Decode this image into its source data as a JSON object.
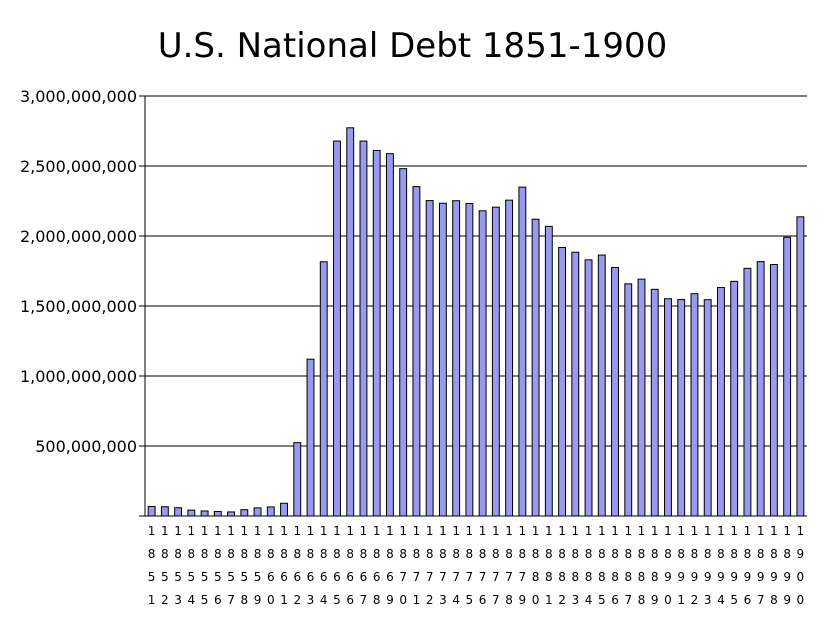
{
  "chart_data": {
    "type": "bar",
    "title": "U.S. National Debt 1851-1900",
    "xlabel": "",
    "ylabel": "",
    "ylim": [
      0,
      3000000000
    ],
    "yticks": [
      0,
      500000000,
      1000000000,
      1500000000,
      2000000000,
      2500000000,
      3000000000
    ],
    "ytick_labels": [
      "",
      "500,000,000",
      "1,000,000,000",
      "1,500,000,000",
      "2,000,000,000",
      "2,500,000,000",
      "3,000,000,000"
    ],
    "grid": true,
    "legend": "none",
    "bar_color": "#9999ee",
    "categories": [
      "1851",
      "1852",
      "1853",
      "1854",
      "1855",
      "1856",
      "1857",
      "1858",
      "1859",
      "1860",
      "1861",
      "1862",
      "1863",
      "1864",
      "1865",
      "1866",
      "1867",
      "1868",
      "1869",
      "1870",
      "1871",
      "1872",
      "1873",
      "1874",
      "1875",
      "1876",
      "1877",
      "1878",
      "1879",
      "1880",
      "1881",
      "1882",
      "1883",
      "1884",
      "1885",
      "1886",
      "1887",
      "1888",
      "1889",
      "1890",
      "1891",
      "1892",
      "1893",
      "1894",
      "1895",
      "1896",
      "1897",
      "1898",
      "1899",
      "1900"
    ],
    "values": [
      68000000,
      66000000,
      59000000,
      42000000,
      36000000,
      32000000,
      29000000,
      45000000,
      58000000,
      65000000,
      91000000,
      524000000,
      1120000000,
      1816000000,
      2678000000,
      2773000000,
      2678000000,
      2611000000,
      2588000000,
      2481000000,
      2353000000,
      2253000000,
      2234000000,
      2252000000,
      2232000000,
      2180000000,
      2206000000,
      2256000000,
      2349000000,
      2120000000,
      2069000000,
      1918000000,
      1884000000,
      1830000000,
      1864000000,
      1775000000,
      1658000000,
      1692000000,
      1619000000,
      1552000000,
      1546000000,
      1588000000,
      1545000000,
      1632000000,
      1676000000,
      1769000000,
      1817000000,
      1796000000,
      1991000000,
      2137000000
    ]
  }
}
